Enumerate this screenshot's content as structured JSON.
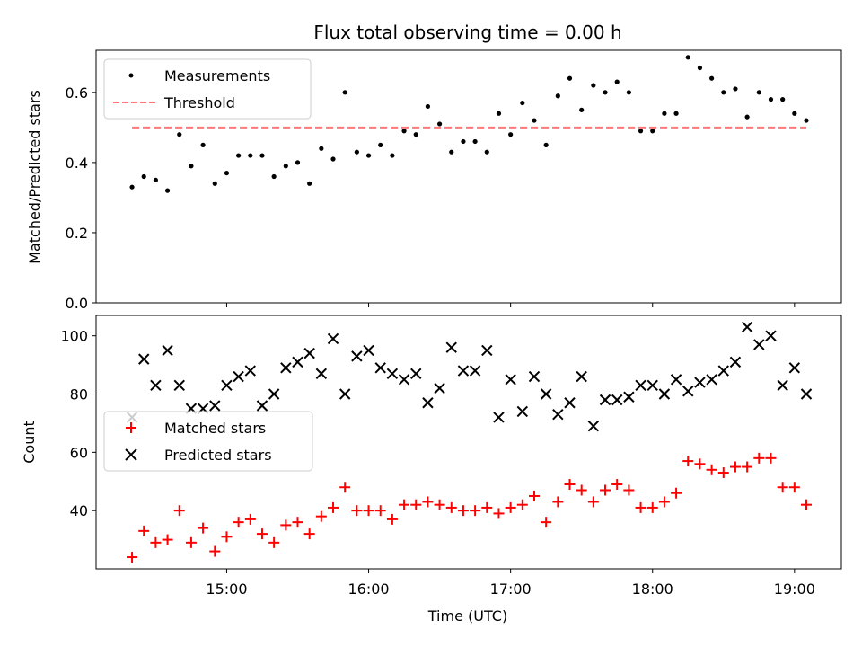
{
  "chart_data": [
    {
      "type": "scatter",
      "title": "Flux total observing time = 0.00 h",
      "xlabel": "",
      "ylabel": "Matched/Predicted stars",
      "ylim": [
        0,
        0.72
      ],
      "yticks": [
        0.0,
        0.2,
        0.4,
        0.6
      ],
      "x_unit": "hours UTC",
      "xlim": [
        14.08,
        19.33
      ],
      "xticks": [
        "15:00",
        "16:00",
        "17:00",
        "18:00",
        "19:00"
      ],
      "legend_position": "top-left",
      "series": [
        {
          "name": "Measurements",
          "marker": "dot",
          "color": "#000000",
          "x": [
            "14:20",
            "14:25",
            "14:30",
            "14:35",
            "14:40",
            "14:45",
            "14:50",
            "14:55",
            "15:00",
            "15:05",
            "15:10",
            "15:15",
            "15:20",
            "15:25",
            "15:30",
            "15:35",
            "15:40",
            "15:45",
            "15:50",
            "15:55",
            "16:00",
            "16:05",
            "16:10",
            "16:15",
            "16:20",
            "16:25",
            "16:30",
            "16:35",
            "16:40",
            "16:45",
            "16:50",
            "16:55",
            "17:00",
            "17:05",
            "17:10",
            "17:15",
            "17:20",
            "17:25",
            "17:30",
            "17:35",
            "17:40",
            "17:45",
            "17:50",
            "17:55",
            "18:00",
            "18:05",
            "18:10",
            "18:15",
            "18:20",
            "18:25",
            "18:30",
            "18:35",
            "18:40",
            "18:45",
            "18:50",
            "18:55",
            "19:00",
            "19:05"
          ],
          "y": [
            0.33,
            0.36,
            0.35,
            0.32,
            0.48,
            0.39,
            0.45,
            0.34,
            0.37,
            0.42,
            0.42,
            0.42,
            0.36,
            0.39,
            0.4,
            0.34,
            0.44,
            0.41,
            0.6,
            0.43,
            0.42,
            0.45,
            0.42,
            0.49,
            0.48,
            0.56,
            0.51,
            0.43,
            0.46,
            0.46,
            0.43,
            0.54,
            0.48,
            0.57,
            0.52,
            0.45,
            0.59,
            0.64,
            0.55,
            0.62,
            0.6,
            0.63,
            0.6,
            0.49,
            0.49,
            0.54,
            0.54,
            0.7,
            0.67,
            0.64,
            0.6,
            0.61,
            0.53,
            0.6,
            0.58,
            0.58,
            0.54,
            0.52
          ]
        },
        {
          "name": "Threshold",
          "marker": "dashed-line",
          "color": "#ff7777",
          "x": [
            "14:20",
            "19:05"
          ],
          "y": [
            0.5,
            0.5
          ]
        }
      ]
    },
    {
      "type": "scatter",
      "title": "",
      "xlabel": "Time (UTC)",
      "ylabel": "Count",
      "ylim": [
        20,
        107
      ],
      "yticks": [
        40,
        60,
        80,
        100
      ],
      "x_unit": "hours UTC",
      "xlim": [
        14.08,
        19.33
      ],
      "xticks": [
        "15:00",
        "16:00",
        "17:00",
        "18:00",
        "19:00"
      ],
      "legend_position": "center-left",
      "series": [
        {
          "name": "Matched stars",
          "marker": "plus",
          "color": "#ff0000",
          "x": [
            "14:20",
            "14:25",
            "14:30",
            "14:35",
            "14:40",
            "14:45",
            "14:50",
            "14:55",
            "15:00",
            "15:05",
            "15:10",
            "15:15",
            "15:20",
            "15:25",
            "15:30",
            "15:35",
            "15:40",
            "15:45",
            "15:50",
            "15:55",
            "16:00",
            "16:05",
            "16:10",
            "16:15",
            "16:20",
            "16:25",
            "16:30",
            "16:35",
            "16:40",
            "16:45",
            "16:50",
            "16:55",
            "17:00",
            "17:05",
            "17:10",
            "17:15",
            "17:20",
            "17:25",
            "17:30",
            "17:35",
            "17:40",
            "17:45",
            "17:50",
            "17:55",
            "18:00",
            "18:05",
            "18:10",
            "18:15",
            "18:20",
            "18:25",
            "18:30",
            "18:35",
            "18:40",
            "18:45",
            "18:50",
            "18:55",
            "19:00",
            "19:05"
          ],
          "y": [
            24,
            33,
            29,
            30,
            40,
            29,
            34,
            26,
            31,
            36,
            37,
            32,
            29,
            35,
            36,
            32,
            38,
            41,
            48,
            40,
            40,
            40,
            37,
            42,
            42,
            43,
            42,
            41,
            40,
            40,
            41,
            39,
            41,
            42,
            45,
            36,
            43,
            49,
            47,
            43,
            47,
            49,
            47,
            41,
            41,
            43,
            46,
            57,
            56,
            54,
            53,
            55,
            55,
            58,
            58,
            48,
            48,
            42
          ]
        },
        {
          "name": "Predicted stars",
          "marker": "x",
          "color": "#000000",
          "x": [
            "14:20",
            "14:25",
            "14:30",
            "14:35",
            "14:40",
            "14:45",
            "14:50",
            "14:55",
            "15:00",
            "15:05",
            "15:10",
            "15:15",
            "15:20",
            "15:25",
            "15:30",
            "15:35",
            "15:40",
            "15:45",
            "15:50",
            "15:55",
            "16:00",
            "16:05",
            "16:10",
            "16:15",
            "16:20",
            "16:25",
            "16:30",
            "16:35",
            "16:40",
            "16:45",
            "16:50",
            "16:55",
            "17:00",
            "17:05",
            "17:10",
            "17:15",
            "17:20",
            "17:25",
            "17:30",
            "17:35",
            "17:40",
            "17:45",
            "17:50",
            "17:55",
            "18:00",
            "18:05",
            "18:10",
            "18:15",
            "18:20",
            "18:25",
            "18:30",
            "18:35",
            "18:40",
            "18:45",
            "18:50",
            "18:55",
            "19:00",
            "19:05"
          ],
          "y": [
            72,
            92,
            83,
            95,
            83,
            75,
            75,
            76,
            83,
            86,
            88,
            76,
            80,
            89,
            91,
            94,
            87,
            99,
            80,
            93,
            95,
            89,
            87,
            85,
            87,
            77,
            82,
            96,
            88,
            88,
            95,
            72,
            85,
            74,
            86,
            80,
            73,
            77,
            86,
            69,
            78,
            78,
            79,
            83,
            83,
            80,
            85,
            81,
            84,
            85,
            88,
            91,
            103,
            97,
            100,
            83,
            89,
            80
          ]
        }
      ]
    }
  ]
}
